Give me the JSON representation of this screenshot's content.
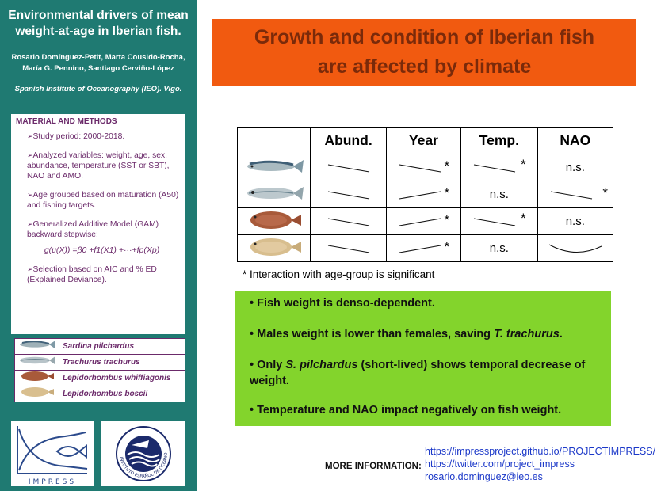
{
  "sidebar": {
    "title": "Environmental drivers of mean weight-at-age in Iberian fish.",
    "authors": "Rosario Domínguez-Petit, Marta Cousido-Rocha, María G. Pennino, Santiago Cerviño-López",
    "institution": "Spanish Institute of Oceanography (IEO). Vigo.",
    "methods": {
      "heading": "MATERIAL AND METHODS",
      "items": [
        "Study period: 2000-2018.",
        "Analyzed variables: weight, age, sex, abundance, temperature (SST or SBT), NAO and AMO.",
        "Age grouped based on maturation (A50) and fishing targets.",
        "Generalized Additive Model (GAM) backward stepwise:"
      ],
      "formula": "g(μ(X)) =β0 +f1(X1) +···+fp(Xp)",
      "last_item": "Selection based on AIC and % ED (Explained Deviance)."
    },
    "species": [
      "Sardina pilchardus",
      "Trachurus trachurus",
      "Lepidorhombus whiffiagonis",
      "Lepidorhombus boscii"
    ],
    "logos": {
      "impress_text": "IMPRESS",
      "ieo_ring_text": "INSTITUTO ESPAÑOL DE OCEANOGRAFÍA"
    }
  },
  "headline": {
    "line1": "Growth and condition of Iberian fish",
    "line2": "are affected by climate"
  },
  "results_table": {
    "headers": [
      "Abund.",
      "Year",
      "Temp.",
      "NAO"
    ],
    "rows": [
      {
        "fish": "sardine",
        "abund": {
          "trend": "decrease",
          "star": ""
        },
        "year": {
          "trend": "decrease",
          "star": "*"
        },
        "temp": {
          "trend": "decrease",
          "star": "*"
        },
        "nao": {
          "text": "n.s."
        }
      },
      {
        "fish": "horse-mackerel",
        "abund": {
          "trend": "decrease",
          "star": ""
        },
        "year": {
          "trend": "increase",
          "star": "*"
        },
        "temp": {
          "text": "n.s."
        },
        "nao": {
          "trend": "decrease",
          "star": "*"
        }
      },
      {
        "fish": "megrim",
        "abund": {
          "trend": "decrease",
          "star": ""
        },
        "year": {
          "trend": "increase",
          "star": "*"
        },
        "temp": {
          "trend": "decrease",
          "star": "*"
        },
        "nao": {
          "text": "n.s."
        }
      },
      {
        "fish": "four-spot-megrim",
        "abund": {
          "trend": "decrease",
          "star": ""
        },
        "year": {
          "trend": "increase",
          "star": "*"
        },
        "temp": {
          "text": "n.s."
        },
        "nao": {
          "trend": "u-curve",
          "star": ""
        }
      }
    ],
    "note": "* Interaction with age-group is significant"
  },
  "conclusions": {
    "c1": "Fish weight is denso-dependent.",
    "c2_pre": "Males weight is lower than females, saving ",
    "c2_species": "T. trachurus",
    "c2_post": ".",
    "c3_pre": "Only ",
    "c3_species": "S. pilchardus",
    "c3_post": " (short-lived) shows temporal decrease of weight.",
    "c4": "Temperature and NAO impact negatively on  fish weight."
  },
  "more_info": {
    "label": "MORE INFORMATION:",
    "links": [
      "https://impressproject.github.io/PROJECTIMPRESS/",
      "https://twitter.com/project_impress",
      "rosario.dominguez@ieo.es"
    ]
  },
  "colors": {
    "sidebar": "#1f7a72",
    "headline_bg": "#f15a10",
    "headline_text": "#7a2a0a",
    "methods_text": "#6b2a6a",
    "conclusions_bg": "#83d42c",
    "link": "#1a37c8"
  }
}
